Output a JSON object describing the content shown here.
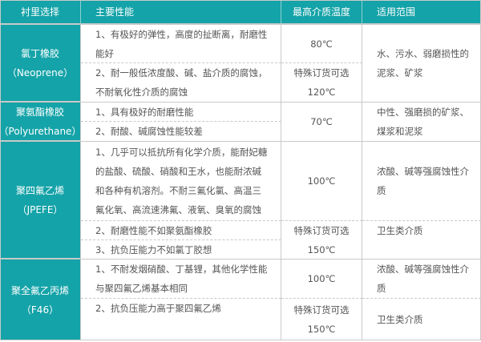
{
  "header": [
    "衬里选择",
    "主要性能",
    "最高介质温度",
    "适用范围"
  ],
  "rows": {
    "neoprene": {
      "name": [
        "氯丁橡胶",
        "（Neoprene）"
      ],
      "p1": [
        "1、有极好的弹性，高度的扯断离，耐磨性",
        "能好"
      ],
      "p2": [
        "2、耐一般低浓度酸、碱、盐介质的腐蚀，",
        "不耐氧化性介质的腐蚀"
      ],
      "t1": "80℃",
      "t2": [
        "特殊订货可选",
        "120℃"
      ],
      "u": [
        "水、污水、弱磨损性的",
        "泥浆、矿浆"
      ]
    },
    "pu": {
      "name": [
        "聚氨酯橡胶",
        "（Polyurethane）"
      ],
      "p1": "1、具有极好的耐磨性能",
      "p2": "2、耐酸、碱腐蚀性能较差",
      "t": "70℃",
      "u": [
        "中性、强磨损的矿浆、",
        "煤浆和泥浆"
      ]
    },
    "ptfe": {
      "name": [
        "聚四氟乙烯",
        "（JPEFE）"
      ],
      "p1": [
        "1、几乎可以抵抗所有化学介质，能耐妃糖",
        "的盐酸、硫酸、硝酸和王水，也能耐浓碱",
        "和各种有机溶剂。不耐三氟化氯、高温三",
        "氟化氧、高流速沸氟、液氧、臭氧的腐蚀"
      ],
      "p2": "2、耐磨性能不如聚氨酯橡胶",
      "p3": "3、抗负压能力不如氯丁胶想",
      "t1": "100℃",
      "t2": [
        "特殊订货可选",
        "150℃"
      ],
      "u1": [
        "浓酸、碱等强腐蚀性介",
        "质"
      ],
      "u2": "卫生类介质"
    },
    "f46": {
      "name": [
        "聚全氟乙丙烯",
        "（F46）"
      ],
      "p1": [
        "1、不耐发烟硝酸、丁基锂，其他化学性能",
        "与聚四氟乙烯基本相同"
      ],
      "p2": "2、抗负压能力高于聚四氟乙烯",
      "t1": "100℃",
      "t2": [
        "特殊订货可选",
        "150℃"
      ],
      "u1": [
        "浓酸、碱等强腐蚀性介",
        "质"
      ],
      "u2": "卫生类介质"
    }
  },
  "colors": {
    "header_bg": "#14a3a8",
    "border": "#c9c9c9",
    "text": "#555555"
  }
}
